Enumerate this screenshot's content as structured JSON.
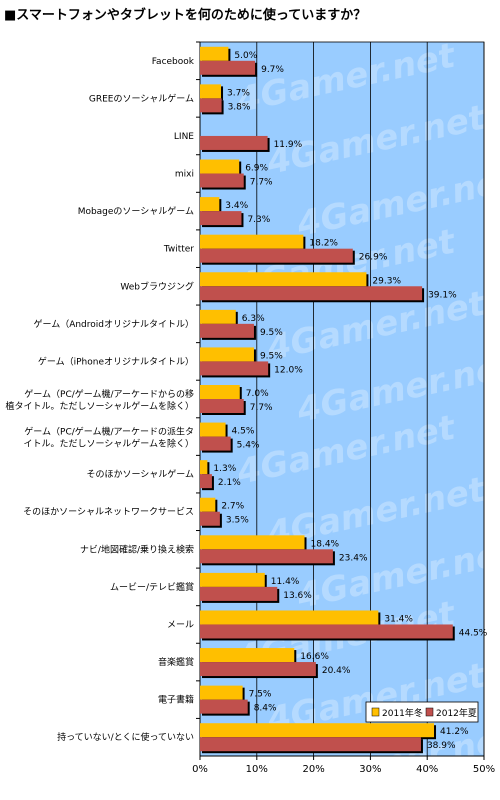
{
  "title": "■スマートフォンやタブレットを何のために使っていますか？",
  "watermark": "4Gamer.net",
  "colors": {
    "plot_bg": "#99ccff",
    "series_2011": "#ffbf00",
    "series_2012": "#c0504d"
  },
  "chart_data": {
    "type": "bar",
    "orientation": "horizontal",
    "categories": [
      [
        "Facebook"
      ],
      [
        "GREEのソーシャルゲーム"
      ],
      [
        "LINE"
      ],
      [
        "mixi"
      ],
      [
        "Mobageのソーシャルゲーム"
      ],
      [
        "Twitter"
      ],
      [
        "Webブラウジング"
      ],
      [
        "ゲーム（Androidオリジナルタイトル）"
      ],
      [
        "ゲーム（iPhoneオリジナルタイトル）"
      ],
      [
        "ゲーム（PC/ゲーム機/アーケードからの移",
        "植タイトル。ただしソーシャルゲームを除く）"
      ],
      [
        "ゲーム（PC/ゲーム機/アーケードの派生タ",
        "イトル。ただしソーシャルゲームを除く）"
      ],
      [
        "そのほかソーシャルゲーム"
      ],
      [
        "そのほかソーシャルネットワークサービス"
      ],
      [
        "ナビ/地図確認/乗り換え検索"
      ],
      [
        "ムービー/テレビ鑑賞"
      ],
      [
        "メール"
      ],
      [
        "音楽鑑賞"
      ],
      [
        "電子書籍"
      ],
      [
        "持っていない/とくに使っていない"
      ]
    ],
    "series": [
      {
        "name": "2011年冬",
        "values": [
          5.0,
          3.7,
          null,
          6.9,
          3.4,
          18.2,
          29.3,
          6.3,
          9.5,
          7.0,
          4.5,
          1.3,
          2.7,
          18.4,
          11.4,
          31.4,
          16.6,
          7.5,
          41.2
        ],
        "labels": [
          "5.0%",
          "3.7%",
          null,
          "6.9%",
          "3.4%",
          "18.2%",
          "29.3%",
          "6.3%",
          "9.5%",
          "7.0%",
          "4.5%",
          "1.3%",
          "2.7%",
          "18.4%",
          "11.4%",
          "31.4%",
          "16.6%",
          "7.5%",
          "41.2%"
        ]
      },
      {
        "name": "2012年夏",
        "values": [
          9.7,
          3.8,
          11.9,
          7.7,
          7.3,
          26.9,
          39.1,
          9.5,
          12.0,
          7.7,
          5.4,
          2.1,
          3.5,
          23.4,
          13.6,
          44.5,
          20.4,
          8.4,
          38.9
        ],
        "labels": [
          "9.7%",
          "3.8%",
          "11.9%",
          "7.7%",
          "7.3%",
          "26.9%",
          "39.1%",
          "9.5%",
          "12.0%",
          "7.7%",
          "5.4%",
          "2.1%",
          "3.5%",
          "23.4%",
          "13.6%",
          "44.5%",
          "20.4%",
          "8.4%",
          "38.9%"
        ]
      }
    ],
    "xlim": [
      0,
      50
    ],
    "xticks": [
      "0%",
      "10%",
      "20%",
      "30%",
      "40%",
      "50%"
    ],
    "grid": true,
    "legend_position": "bottom-right"
  }
}
